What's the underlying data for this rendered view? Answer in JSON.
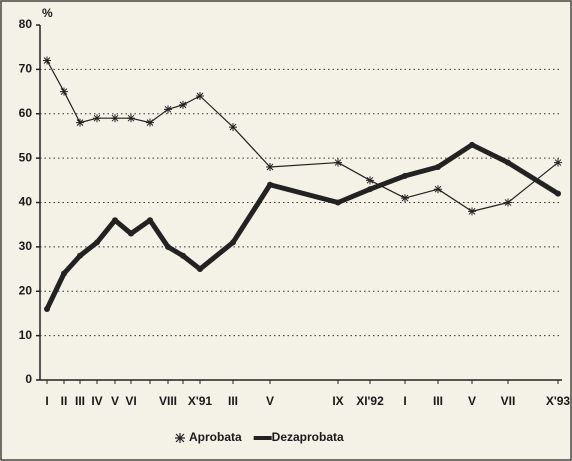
{
  "chart_data": {
    "type": "line",
    "y_label": "%",
    "categories": [
      "I",
      "II",
      "III",
      "IV",
      "V",
      "VI",
      null,
      "VIII",
      null,
      "X'91",
      "III",
      "V",
      "IX",
      "XI'92",
      "I",
      "III",
      "V",
      "VII",
      "X'93"
    ],
    "series": [
      {
        "name": "Aprobata",
        "color": "#222222",
        "values": [
          72,
          65,
          58,
          59,
          59,
          59,
          58,
          61,
          62,
          64,
          57,
          48,
          49,
          45,
          41,
          43,
          38,
          40,
          49
        ]
      },
      {
        "name": "Dezaprobata",
        "color": "#222222",
        "values": [
          16,
          24,
          28,
          31,
          36,
          33,
          36,
          30,
          28,
          25,
          31,
          44,
          40,
          43,
          46,
          48,
          53,
          49,
          42
        ]
      }
    ],
    "ylim": [
      0,
      80
    ],
    "yticks": [
      0,
      10,
      20,
      30,
      40,
      50,
      60,
      70,
      80
    ],
    "grid": true
  }
}
